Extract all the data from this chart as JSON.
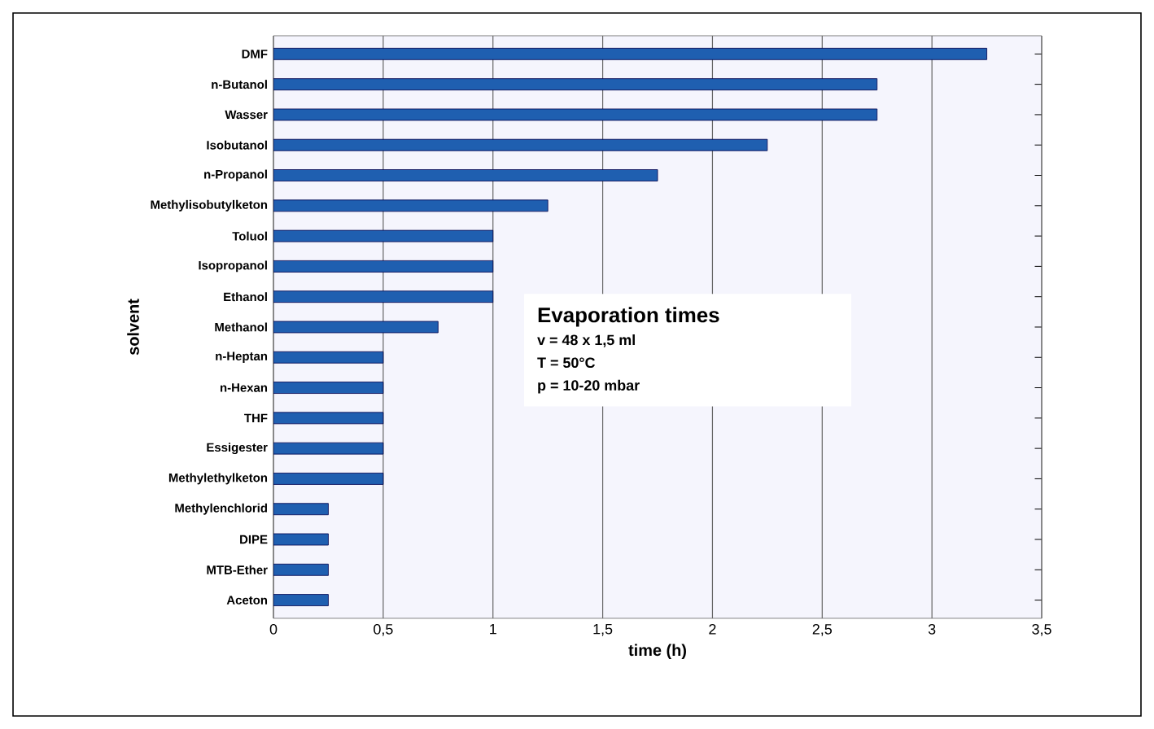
{
  "chart_data": {
    "type": "bar",
    "orientation": "horizontal",
    "categories": [
      "DMF",
      "n-Butanol",
      "Wasser",
      "Isobutanol",
      "n-Propanol",
      "Methylisobutylketon",
      "Toluol",
      "Isopropanol",
      "Ethanol",
      "Methanol",
      "n-Heptan",
      "n-Hexan",
      "THF",
      "Essigester",
      "Methylethylketon",
      "Methylenchlorid",
      "DIPE",
      "MTB-Ether",
      "Aceton"
    ],
    "values": [
      3.25,
      2.75,
      2.75,
      2.25,
      1.75,
      1.25,
      1,
      1,
      1,
      0.75,
      0.5,
      0.5,
      0.5,
      0.5,
      0.5,
      0.25,
      0.25,
      0.25,
      0.25
    ],
    "color": "#1f5fb0",
    "xlabel": "time (h)",
    "ylabel": "solvent",
    "xlim": [
      0,
      3.5
    ],
    "xticks": [
      0,
      {
        "value": 0.5,
        "label": "0,5"
      },
      1,
      {
        "value": 1.5,
        "label": "1,5"
      },
      2,
      {
        "value": 2.5,
        "label": "2,5"
      },
      3,
      {
        "value": 3.5,
        "label": "3,5"
      }
    ],
    "grid": "x",
    "annotations": [
      "**Evaporation times**",
      "v = 48 x 1,5 ml",
      "T = 50°C",
      "p = 10-20 mbar"
    ]
  }
}
